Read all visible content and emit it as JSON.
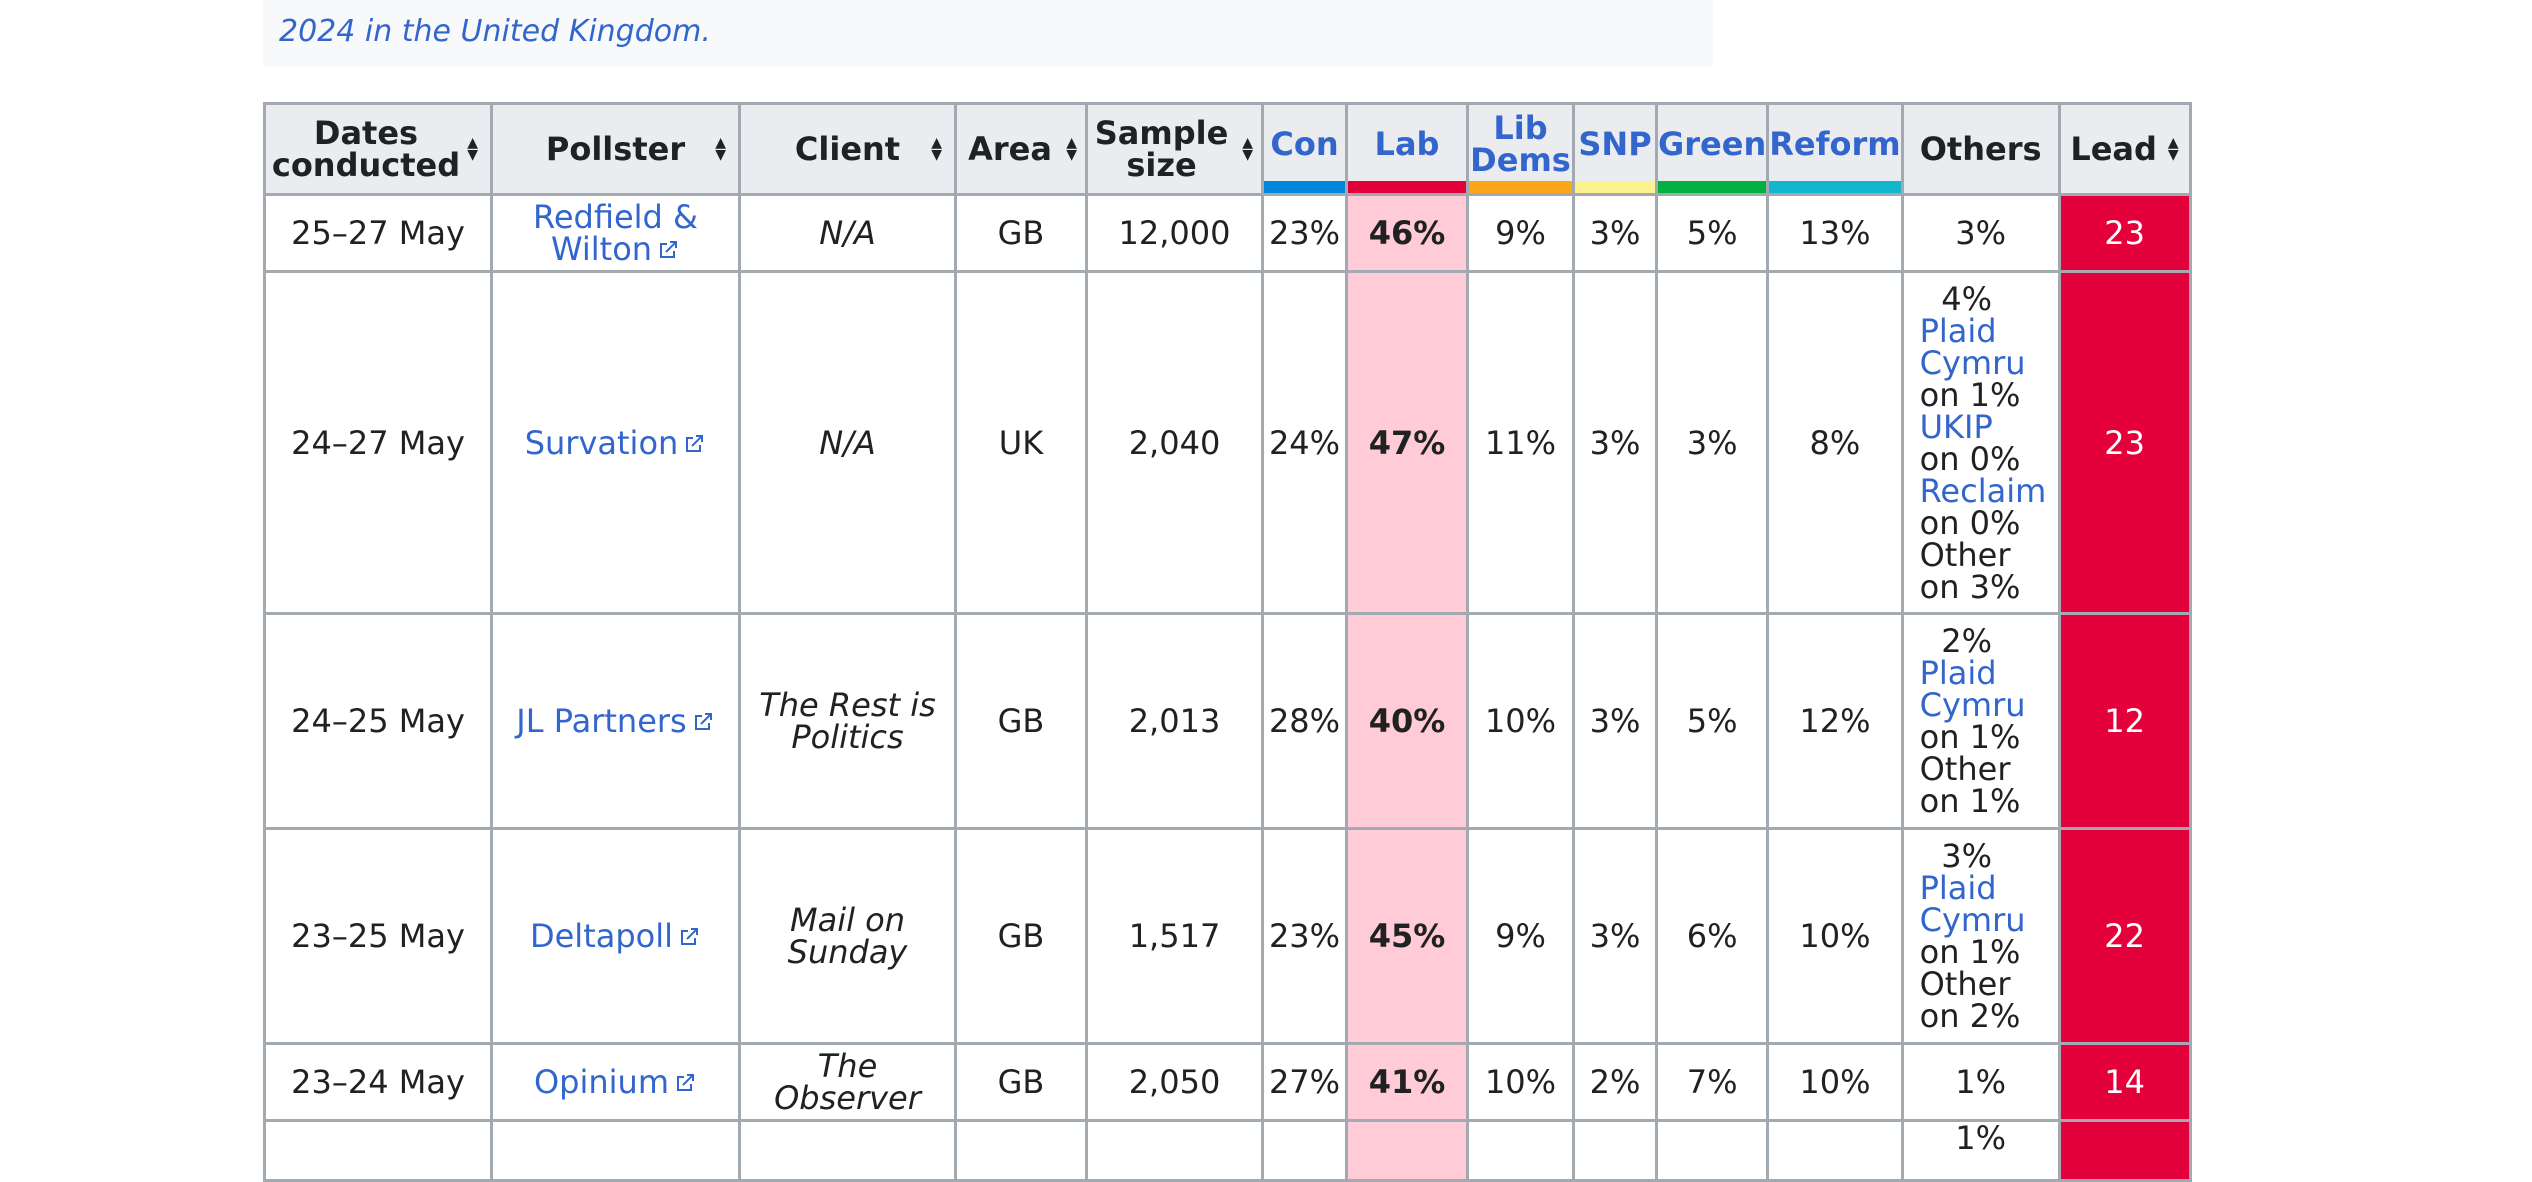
{
  "caption": "2024 in the United Kingdom.",
  "headers": {
    "dates": "Dates conducted",
    "pollster": "Pollster",
    "client": "Client",
    "area": "Area",
    "sample": "Sample size",
    "con": "Con",
    "lab": "Lab",
    "libdems": "Lib Dems",
    "snp": "SNP",
    "green": "Green",
    "reform": "Reform",
    "others": "Others",
    "lead": "Lead"
  },
  "party_colors": {
    "con": "#0087dc",
    "lab": "#e4003b",
    "libdems": "#faa61a",
    "snp": "#fdf38e",
    "green": "#00b140",
    "reform": "#12b6cf"
  },
  "rows": [
    {
      "dates": "25–27 May",
      "pollster": "Redfield & Wilton",
      "client": "N/A",
      "area": "GB",
      "sample": "12,000",
      "con": "23%",
      "lab": "46%",
      "libdems": "9%",
      "snp": "3%",
      "green": "5%",
      "reform": "13%",
      "others_total": "3%",
      "others_detail": [],
      "lead": "23"
    },
    {
      "dates": "24–27 May",
      "pollster": "Survation",
      "client": "N/A",
      "area": "UK",
      "sample": "2,040",
      "con": "24%",
      "lab": "47%",
      "libdems": "11%",
      "snp": "3%",
      "green": "3%",
      "reform": "8%",
      "others_total": "4%",
      "others_detail": [
        {
          "name": "Plaid Cymru",
          "link": true,
          "value": "on 1%"
        },
        {
          "name": "UKIP",
          "link": true,
          "value": "on 0%"
        },
        {
          "name": "Reclaim",
          "link": true,
          "value": "on 0%"
        },
        {
          "name": "Other",
          "link": false,
          "value": "on 3%"
        }
      ],
      "lead": "23"
    },
    {
      "dates": "24–25 May",
      "pollster": "JL Partners",
      "client": "The Rest is Politics",
      "area": "GB",
      "sample": "2,013",
      "con": "28%",
      "lab": "40%",
      "libdems": "10%",
      "snp": "3%",
      "green": "5%",
      "reform": "12%",
      "others_total": "2%",
      "others_detail": [
        {
          "name": "Plaid Cymru",
          "link": true,
          "value": "on 1%"
        },
        {
          "name": "Other",
          "link": false,
          "value": "on 1%"
        }
      ],
      "lead": "12"
    },
    {
      "dates": "23–25 May",
      "pollster": "Deltapoll",
      "client": "Mail on Sunday",
      "area": "GB",
      "sample": "1,517",
      "con": "23%",
      "lab": "45%",
      "libdems": "9%",
      "snp": "3%",
      "green": "6%",
      "reform": "10%",
      "others_total": "3%",
      "others_detail": [
        {
          "name": "Plaid Cymru",
          "link": true,
          "value": "on 1%"
        },
        {
          "name": "Other",
          "link": false,
          "value": "on 2%"
        }
      ],
      "lead": "22"
    },
    {
      "dates": "23–24 May",
      "pollster": "Opinium",
      "client": "The Observer",
      "area": "GB",
      "sample": "2,050",
      "con": "27%",
      "lab": "41%",
      "libdems": "10%",
      "snp": "2%",
      "green": "7%",
      "reform": "10%",
      "others_total": "1%",
      "others_detail": [],
      "lead": "14"
    },
    {
      "dates": "",
      "pollster": "",
      "client": "",
      "area": "",
      "sample": "",
      "con": "",
      "lab": "",
      "libdems": "",
      "snp": "",
      "green": "",
      "reform": "",
      "others_total": "1%",
      "others_detail": [],
      "lead": ""
    }
  ]
}
